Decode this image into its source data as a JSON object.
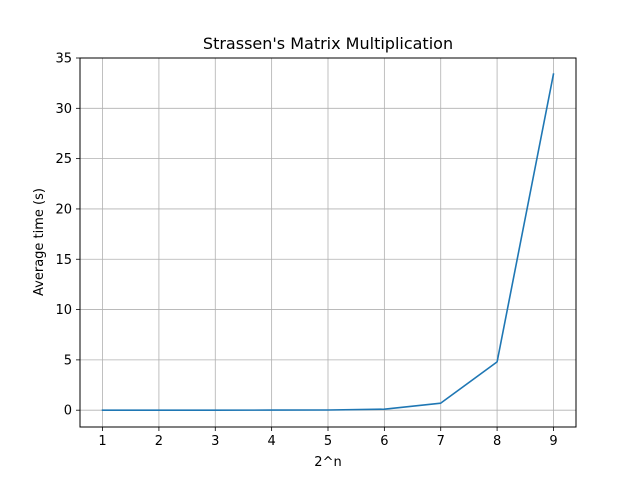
{
  "chart_data": {
    "type": "line",
    "title": "Strassen's Matrix Multiplication",
    "xlabel": "2^n",
    "ylabel": "Average time (s)",
    "x": [
      1,
      2,
      3,
      4,
      5,
      6,
      7,
      8,
      9
    ],
    "series": [
      {
        "values": [
          0.0,
          0.0,
          0.0,
          0.01,
          0.02,
          0.1,
          0.7,
          4.8,
          33.4
        ],
        "color": "#1f77b4"
      }
    ],
    "xlim": [
      0.6,
      9.4
    ],
    "ylim": [
      -1.67,
      35
    ],
    "xticks": [
      "1",
      "2",
      "3",
      "4",
      "5",
      "6",
      "7",
      "8",
      "9"
    ],
    "yticks": [
      "0",
      "5",
      "10",
      "15",
      "20",
      "25",
      "30",
      "35"
    ],
    "grid": true
  }
}
